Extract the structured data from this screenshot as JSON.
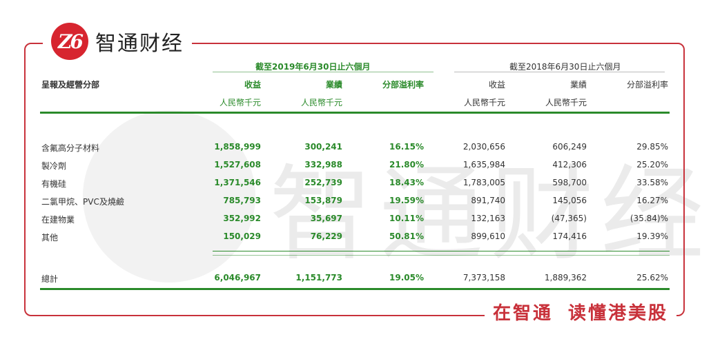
{
  "brand": {
    "logo_text": "Z6",
    "name": "智通财经"
  },
  "slogan": {
    "part1": "在智通",
    "part2": "读懂港美股"
  },
  "watermark": {
    "text": "智通财经"
  },
  "table": {
    "period_2019": "截至2019年6月30日止六個月",
    "period_2018": "截至2018年6月30日止六個月",
    "segment_header": "呈報及經營分部",
    "cols": [
      "收益",
      "業績",
      "分部溢利率",
      "收益",
      "業績",
      "分部溢利率"
    ],
    "units": [
      "人民幣千元",
      "人民幣千元",
      "人民幣千元",
      "人民幣千元"
    ],
    "rows": [
      {
        "name": "含氟高分子材料",
        "v": [
          "1,858,999",
          "300,241",
          "16.15%",
          "2,030,656",
          "606,249",
          "29.85%"
        ]
      },
      {
        "name": "製冷劑",
        "v": [
          "1,527,608",
          "332,988",
          "21.80%",
          "1,635,984",
          "412,306",
          "25.20%"
        ]
      },
      {
        "name": "有機硅",
        "v": [
          "1,371,546",
          "252,739",
          "18.43%",
          "1,783,005",
          "598,700",
          "33.58%"
        ]
      },
      {
        "name": "二氯甲烷、PVC及燒鹼",
        "v": [
          "785,793",
          "153,879",
          "19.59%",
          "891,740",
          "145,056",
          "16.27%"
        ]
      },
      {
        "name": "在建物業",
        "v": [
          "352,992",
          "35,697",
          "10.11%",
          "132,163",
          "(47,365)",
          "(35.84)%"
        ]
      },
      {
        "name": "其他",
        "v": [
          "150,029",
          "76,229",
          "50.81%",
          "899,610",
          "174,416",
          "19.39%"
        ]
      }
    ],
    "total": {
      "name": "總計",
      "v": [
        "6,046,967",
        "1,151,773",
        "19.05%",
        "7,373,158",
        "1,889,362",
        "25.62%"
      ]
    }
  }
}
